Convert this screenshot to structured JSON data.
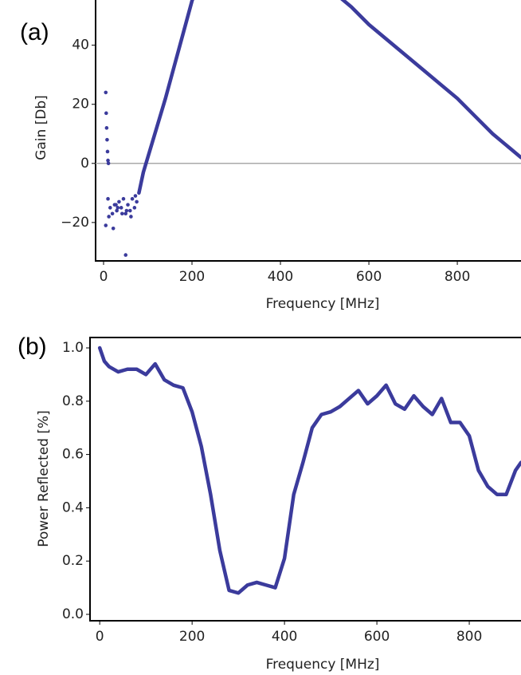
{
  "chart_data": [
    {
      "type": "scatter",
      "panel_label": "(a)",
      "x_label": "Frequency [MHz]",
      "y_label": "Gain [Db]",
      "xlim": [
        -18,
        944
      ],
      "ylim": [
        -33,
        58
      ],
      "xticks": [
        0,
        200,
        400,
        600,
        800
      ],
      "yticks": [
        {
          "value": -20,
          "label": "−20"
        },
        0,
        20,
        40
      ],
      "zero_line": true,
      "series": [
        {
          "color": "#3b3b9c",
          "line": false,
          "x": [
            5,
            6,
            7,
            8,
            9,
            10,
            11,
            5,
            10,
            15,
            20,
            25,
            30,
            35,
            40,
            45,
            50,
            55,
            60,
            65,
            70,
            75,
            12,
            22,
            32,
            42,
            52,
            62,
            72,
            50,
            28
          ],
          "values": [
            24,
            17,
            12,
            8,
            4,
            1,
            0,
            -21,
            -12,
            -15,
            -17,
            -14,
            -16,
            -13,
            -15,
            -12,
            -17,
            -14,
            -16,
            -12,
            -15,
            -13,
            -18,
            -22,
            -15,
            -17,
            -16,
            -18,
            -11,
            -31,
            -14
          ]
        },
        {
          "color": "#3b3b9c",
          "line": true,
          "x": [
            80,
            90,
            100,
            110,
            120,
            140,
            160,
            180,
            200,
            210
          ],
          "values": [
            -10,
            -3,
            2,
            7,
            12,
            22,
            33,
            44,
            55,
            59
          ]
        },
        {
          "color": "#3b3b9c",
          "line": true,
          "x": [
            520,
            560,
            600,
            640,
            680,
            720,
            760,
            800,
            840,
            880,
            920,
            944
          ],
          "values": [
            58,
            53,
            47,
            42,
            37,
            32,
            27,
            22,
            16,
            10,
            5,
            2
          ]
        }
      ]
    },
    {
      "type": "line",
      "panel_label": "(b)",
      "x_label": "Frequency [MHz]",
      "y_label": "Power Reflected [%]",
      "xlim": [
        -21,
        912
      ],
      "ylim": [
        -0.024,
        1.039
      ],
      "xticks": [
        0,
        200,
        400,
        600,
        800
      ],
      "yticks": [
        {
          "value": 0,
          "label": "0.0"
        },
        0.2,
        0.4,
        0.6,
        0.8,
        {
          "value": 1,
          "label": "1.0"
        }
      ],
      "zero_line": false,
      "series": [
        {
          "color": "#3b3b9c",
          "line": true,
          "x": [
            0,
            10,
            20,
            40,
            60,
            80,
            100,
            120,
            140,
            160,
            180,
            200,
            220,
            240,
            260,
            280,
            300,
            320,
            340,
            360,
            380,
            400,
            420,
            440,
            460,
            480,
            500,
            520,
            540,
            560,
            580,
            600,
            620,
            640,
            660,
            680,
            700,
            720,
            740,
            760,
            780,
            800,
            820,
            840,
            860,
            880,
            900,
            912
          ],
          "values": [
            1.0,
            0.95,
            0.93,
            0.91,
            0.92,
            0.92,
            0.9,
            0.94,
            0.88,
            0.86,
            0.85,
            0.76,
            0.63,
            0.45,
            0.24,
            0.09,
            0.08,
            0.11,
            0.12,
            0.11,
            0.1,
            0.21,
            0.45,
            0.57,
            0.7,
            0.75,
            0.76,
            0.78,
            0.81,
            0.84,
            0.79,
            0.82,
            0.86,
            0.79,
            0.77,
            0.82,
            0.78,
            0.75,
            0.81,
            0.72,
            0.72,
            0.67,
            0.54,
            0.48,
            0.45,
            0.45,
            0.54,
            0.57
          ]
        }
      ]
    }
  ]
}
